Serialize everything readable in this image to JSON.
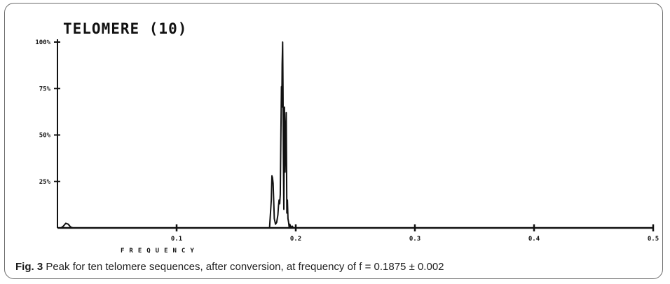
{
  "chart_data": {
    "type": "line",
    "title": "TELOMERE (10)",
    "xlabel": "FREQUENCY",
    "ylabel": "",
    "xlim": [
      0,
      0.5
    ],
    "ylim": [
      0,
      100
    ],
    "x_ticks": [
      0.1,
      0.2,
      0.3,
      0.4,
      0.5
    ],
    "x_tick_labels": [
      "0.1",
      "0.2",
      "0.3",
      "0.4",
      "0.5"
    ],
    "y_ticks": [
      25,
      50,
      75,
      100
    ],
    "y_tick_labels": [
      "25%",
      "50%",
      "75%",
      "100%"
    ],
    "grid": false,
    "series": [
      {
        "x": [
          0.0,
          0.003,
          0.005,
          0.007,
          0.009,
          0.011,
          0.013,
          0.015,
          0.1,
          0.17,
          0.176,
          0.178,
          0.1795,
          0.18,
          0.1805,
          0.181,
          0.182,
          0.183,
          0.184,
          0.185,
          0.1855,
          0.186,
          0.1865,
          0.187,
          0.1875,
          0.188,
          0.1883,
          0.1886,
          0.189,
          0.1893,
          0.1896,
          0.19,
          0.1905,
          0.191,
          0.1915,
          0.192,
          0.1925,
          0.193,
          0.1935,
          0.194,
          0.1945,
          0.195,
          0.196,
          0.197,
          0.198,
          0.2,
          0.3,
          0.4,
          0.5
        ],
        "y": [
          0,
          0,
          1,
          2.5,
          2,
          0.5,
          0,
          0,
          0,
          0,
          0,
          0,
          15,
          28,
          27,
          24,
          5,
          2,
          3,
          7,
          12,
          15,
          13,
          18,
          50,
          76,
          65,
          88,
          100,
          75,
          42,
          10,
          65,
          30,
          50,
          62,
          8,
          15,
          5,
          3,
          0,
          2,
          0,
          1,
          0,
          0,
          0,
          0,
          0
        ]
      }
    ]
  },
  "caption": {
    "label": "Fig. 3",
    "text": " Peak for ten telomere sequences, after conversion, at frequency of f = 0.1875 ± 0.002"
  }
}
